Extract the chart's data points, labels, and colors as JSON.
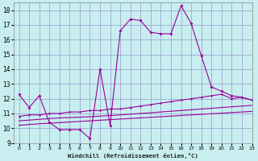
{
  "xlabel": "Windchill (Refroidissement éolien,°C)",
  "background_color": "#c8eef0",
  "grid_color": "#9999cc",
  "line_color": "#990099",
  "x_values": [
    0,
    1,
    2,
    3,
    4,
    5,
    6,
    7,
    8,
    9,
    10,
    11,
    12,
    13,
    14,
    15,
    16,
    17,
    18,
    19,
    20,
    21,
    22,
    23
  ],
  "series_main": [
    12.3,
    11.4,
    12.2,
    10.4,
    9.9,
    9.9,
    9.9,
    9.3,
    14.0,
    10.2,
    16.6,
    17.4,
    17.3,
    16.5,
    16.4,
    16.4,
    18.3,
    17.1,
    14.9,
    12.8,
    12.5,
    12.2,
    12.1,
    11.9
  ],
  "series_upper": [
    10.8,
    10.9,
    10.9,
    11.0,
    11.0,
    11.1,
    11.1,
    11.2,
    11.2,
    11.3,
    11.3,
    11.4,
    11.5,
    11.6,
    11.7,
    11.8,
    11.9,
    12.0,
    12.1,
    12.2,
    12.3,
    12.0,
    12.1,
    11.9
  ],
  "series_lower1": [
    10.5,
    10.55,
    10.6,
    10.65,
    10.7,
    10.72,
    10.75,
    10.78,
    10.82,
    10.86,
    10.9,
    10.95,
    11.0,
    11.05,
    11.1,
    11.15,
    11.2,
    11.25,
    11.3,
    11.35,
    11.4,
    11.45,
    11.5,
    11.55
  ],
  "series_lower2": [
    10.2,
    10.25,
    10.3,
    10.34,
    10.38,
    10.42,
    10.46,
    10.5,
    10.54,
    10.58,
    10.62,
    10.66,
    10.7,
    10.74,
    10.78,
    10.82,
    10.86,
    10.9,
    10.94,
    10.98,
    11.02,
    11.06,
    11.1,
    11.14
  ],
  "ylim": [
    9,
    18.5
  ],
  "xlim": [
    -0.5,
    23
  ],
  "yticks": [
    9,
    10,
    11,
    12,
    13,
    14,
    15,
    16,
    17,
    18
  ],
  "xticks": [
    0,
    1,
    2,
    3,
    4,
    5,
    6,
    7,
    8,
    9,
    10,
    11,
    12,
    13,
    14,
    15,
    16,
    17,
    18,
    19,
    20,
    21,
    22,
    23
  ]
}
